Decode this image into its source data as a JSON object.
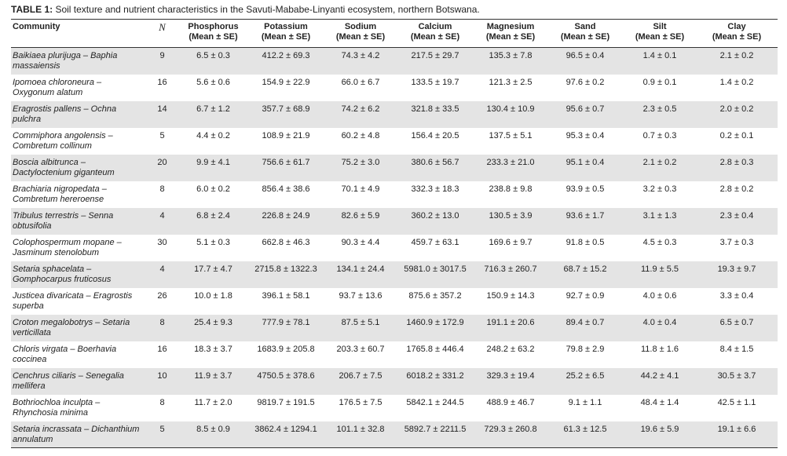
{
  "title": {
    "label": "TABLE 1:",
    "text": "Soil texture and nutrient characteristics in the Savuti-Mababe-Linyanti ecosystem, northern Botswana."
  },
  "table": {
    "headers": [
      {
        "name": "Community"
      },
      {
        "name": "N"
      },
      {
        "name": "Phosphorus",
        "sub": "(Mean ± SE)"
      },
      {
        "name": "Potassium",
        "sub": "(Mean ± SE)"
      },
      {
        "name": "Sodium",
        "sub": "(Mean ± SE)"
      },
      {
        "name": "Calcium",
        "sub": "(Mean ± SE)"
      },
      {
        "name": "Magnesium",
        "sub": "(Mean ± SE)"
      },
      {
        "name": "Sand",
        "sub": "(Mean ± SE)"
      },
      {
        "name": "Silt",
        "sub": "(Mean ± SE)"
      },
      {
        "name": "Clay",
        "sub": "(Mean ± SE)"
      }
    ],
    "rows": [
      [
        "Baikiaea plurijuga – Baphia massaiensis",
        9,
        "6.5 ± 0.3",
        "412.2 ± 69.3",
        "74.3 ± 4.2",
        "217.5 ± 29.7",
        "135.3 ± 7.8",
        "96.5 ± 0.4",
        "1.4 ± 0.1",
        "2.1 ± 0.2"
      ],
      [
        "Ipomoea chloroneura – Oxygonum alatum",
        16,
        "5.6 ± 0.6",
        "154.9 ± 22.9",
        "66.0 ± 6.7",
        "133.5 ± 19.7",
        "121.3 ± 2.5",
        "97.6 ± 0.2",
        "0.9 ± 0.1",
        "1.4 ± 0.2"
      ],
      [
        "Eragrostis pallens – Ochna pulchra",
        14,
        "6.7 ± 1.2",
        "357.7 ± 68.9",
        "74.2 ± 6.2",
        "321.8 ± 33.5",
        "130.4 ± 10.9",
        "95.6 ± 0.7",
        "2.3 ± 0.5",
        "2.0 ± 0.2"
      ],
      [
        "Commiphora angolensis – Combretum collinum",
        5,
        "4.4 ± 0.2",
        "108.9 ± 21.9",
        "60.2 ± 4.8",
        "156.4 ± 20.5",
        "137.5 ± 5.1",
        "95.3 ± 0.4",
        "0.7 ± 0.3",
        "0.2 ± 0.1"
      ],
      [
        "Boscia albitrunca – Dactyloctenium giganteum",
        20,
        "9.9 ± 4.1",
        "756.6 ± 61.7",
        "75.2 ± 3.0",
        "380.6 ± 56.7",
        "233.3 ± 21.0",
        "95.1 ± 0.4",
        "2.1 ± 0.2",
        "2.8 ± 0.3"
      ],
      [
        "Brachiaria nigropedata – Combretum hereroense",
        8,
        "6.0 ± 0.2",
        "856.4 ± 38.6",
        "70.1 ± 4.9",
        "332.3 ± 18.3",
        "238.8 ± 9.8",
        "93.9 ± 0.5",
        "3.2 ± 0.3",
        "2.8 ± 0.2"
      ],
      [
        "Tribulus terrestris – Senna obtusifolia",
        4,
        "6.8 ± 2.4",
        "226.8 ± 24.9",
        "82.6 ± 5.9",
        "360.2 ± 13.0",
        "130.5 ± 3.9",
        "93.6 ± 1.7",
        "3.1 ± 1.3",
        "2.3 ± 0.4"
      ],
      [
        "Colophospermum mopane – Jasminum stenolobum",
        30,
        "5.1 ± 0.3",
        "662.8 ± 46.3",
        "90.3 ± 4.4",
        "459.7 ± 63.1",
        "169.6 ± 9.7",
        "91.8 ± 0.5",
        "4.5 ± 0.3",
        "3.7 ± 0.3"
      ],
      [
        "Setaria sphacelata – Gomphocarpus fruticosus",
        4,
        "17.7 ± 4.7",
        "2715.8 ± 1322.3",
        "134.1 ± 24.4",
        "5981.0 ± 3017.5",
        "716.3 ± 260.7",
        "68.7 ± 15.2",
        "11.9 ± 5.5",
        "19.3 ± 9.7"
      ],
      [
        "Justicea divaricata – Eragrostis superba",
        26,
        "10.0 ± 1.8",
        "396.1 ± 58.1",
        "93.7 ± 13.6",
        "875.6 ± 357.2",
        "150.9 ± 14.3",
        "92.7 ± 0.9",
        "4.0 ± 0.6",
        "3.3 ± 0.4"
      ],
      [
        "Croton megalobotrys – Setaria verticillata",
        8,
        "25.4 ± 9.3",
        "777.9 ± 78.1",
        "87.5 ± 5.1",
        "1460.9 ± 172.9",
        "191.1 ± 20.6",
        "89.4 ± 0.7",
        "4.0 ± 0.4",
        "6.5 ± 0.7"
      ],
      [
        "Chloris virgata – Boerhavia coccinea",
        16,
        "18.3 ± 3.7",
        "1683.9 ± 205.8",
        "203.3 ± 60.7",
        "1765.8 ± 446.4",
        "248.2 ± 63.2",
        "79.8 ± 2.9",
        "11.8 ± 1.6",
        "8.4 ± 1.5"
      ],
      [
        "Cenchrus ciliaris – Senegalia mellifera",
        10,
        "11.9 ± 3.7",
        "4750.5 ± 378.6",
        "206.7 ± 7.5",
        "6018.2 ± 331.2",
        "329.3 ± 19.4",
        "25.2 ± 6.5",
        "44.2 ± 4.1",
        "30.5 ± 3.7"
      ],
      [
        "Bothriochloa inculpta – Rhynchosia minima",
        8,
        "11.7 ± 2.0",
        "9819.7 ± 191.5",
        "176.5 ± 7.5",
        "5842.1 ± 244.5",
        "488.9 ± 46.7",
        "9.1 ± 1.1",
        "48.4 ± 1.4",
        "42.5 ± 1.1"
      ],
      [
        "Setaria incrassata – Dichanthium annulatum",
        5,
        "8.5 ± 0.9",
        "3862.4 ± 1294.1",
        "101.1 ± 32.8",
        "5892.7 ± 2211.5",
        "729.3 ± 260.8",
        "61.3 ± 12.5",
        "19.6 ± 5.9",
        "19.1 ± 6.6"
      ]
    ]
  }
}
